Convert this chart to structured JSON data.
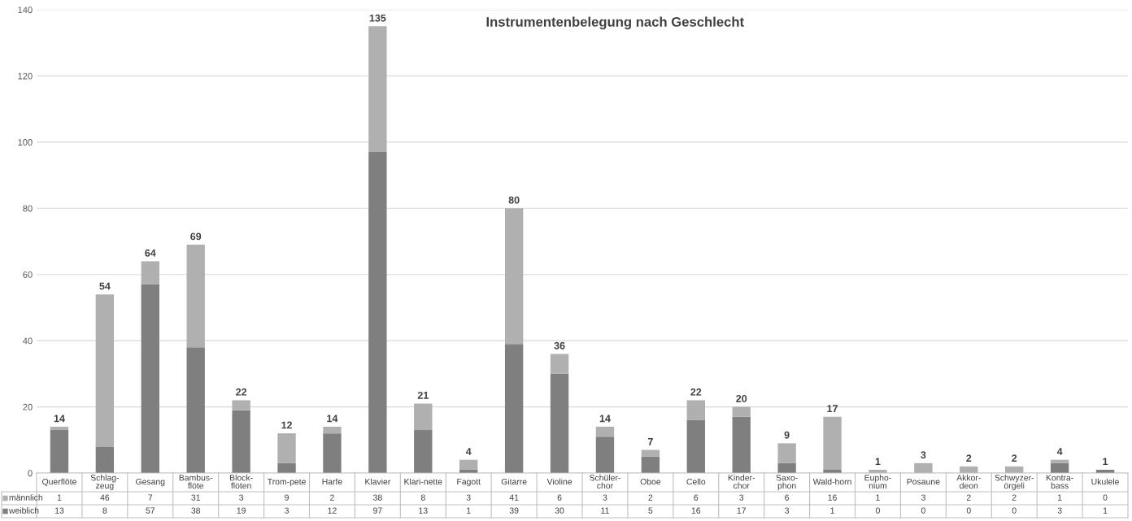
{
  "chart_data": {
    "type": "bar",
    "title": "Instrumentenbelegung nach Geschlecht",
    "stacked": true,
    "data_labels": true,
    "legend": "bottom left",
    "grid": "y",
    "categories": [
      "Querflöte",
      "Schlag-\nzeug",
      "Gesang",
      "Bambus-\nflöte",
      "Block-\nflöten",
      "Trom-pete",
      "Harfe",
      "Klavier",
      "Klari-nette",
      "Fagott",
      "Gitarre",
      "Violine",
      "Schüler-\nchor",
      "Oboe",
      "Cello",
      "Kinder-\nchor",
      "Saxo-\nphon",
      "Wald-horn",
      "Eupho-\nnium",
      "Posaune",
      "Akkor-\ndeon",
      "Schwyzer-\nörgeli",
      "Kontra-\nbass",
      "Ukulele"
    ],
    "series": [
      {
        "name": "weiblich",
        "color": "#7f7f7f",
        "values": [
          13,
          8,
          57,
          38,
          19,
          3,
          12,
          97,
          13,
          1,
          39,
          30,
          11,
          5,
          16,
          17,
          3,
          1,
          0,
          0,
          0,
          0,
          3,
          1
        ]
      },
      {
        "name": "männlich",
        "color": "#b0b0b0",
        "values": [
          1,
          46,
          7,
          31,
          3,
          9,
          2,
          38,
          8,
          3,
          41,
          6,
          3,
          2,
          6,
          3,
          6,
          16,
          1,
          3,
          2,
          2,
          1,
          0
        ]
      }
    ],
    "totals": [
      "14",
      "54",
      "64",
      "69",
      "22",
      "12",
      "14",
      "135",
      "21",
      "4",
      "80",
      "36",
      "14",
      "7",
      "22",
      "20",
      "9",
      "17",
      "1",
      "3",
      "2",
      "2",
      "4",
      "1"
    ],
    "ylim": [
      0,
      140
    ],
    "yticks": [
      0,
      20,
      40,
      60,
      80,
      100,
      120,
      140
    ]
  }
}
